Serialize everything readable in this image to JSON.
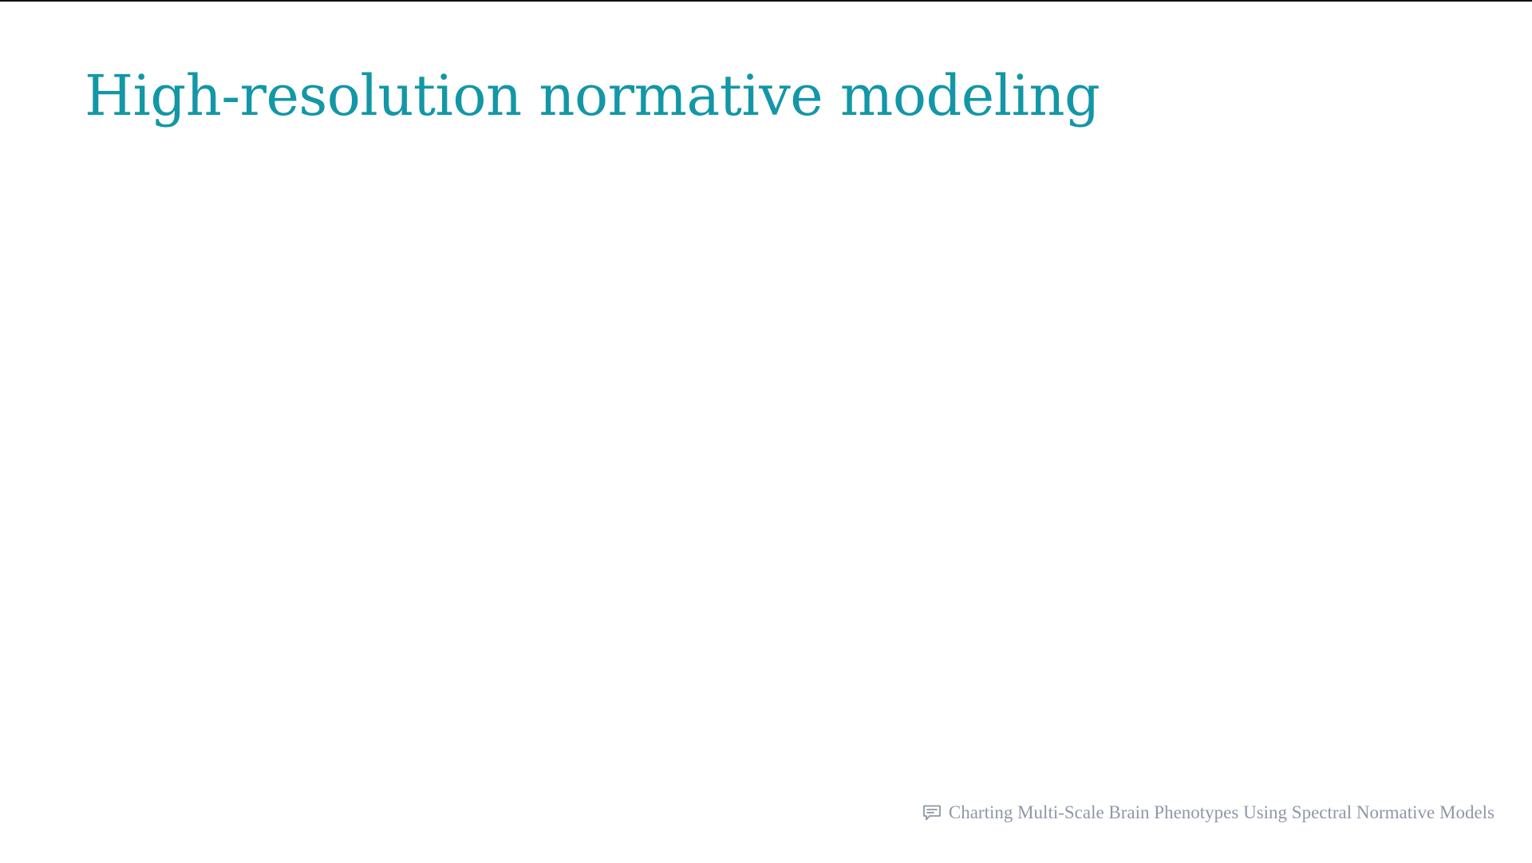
{
  "slide": {
    "title": "High-resolution normative modeling",
    "footer": {
      "icon": "speech-bubble-icon",
      "text": "Charting Multi-Scale Brain Phenotypes Using Spectral Normative Models"
    }
  },
  "colors": {
    "title": "#1397a6",
    "footer_text": "#8f97a8",
    "background": "#ffffff"
  }
}
